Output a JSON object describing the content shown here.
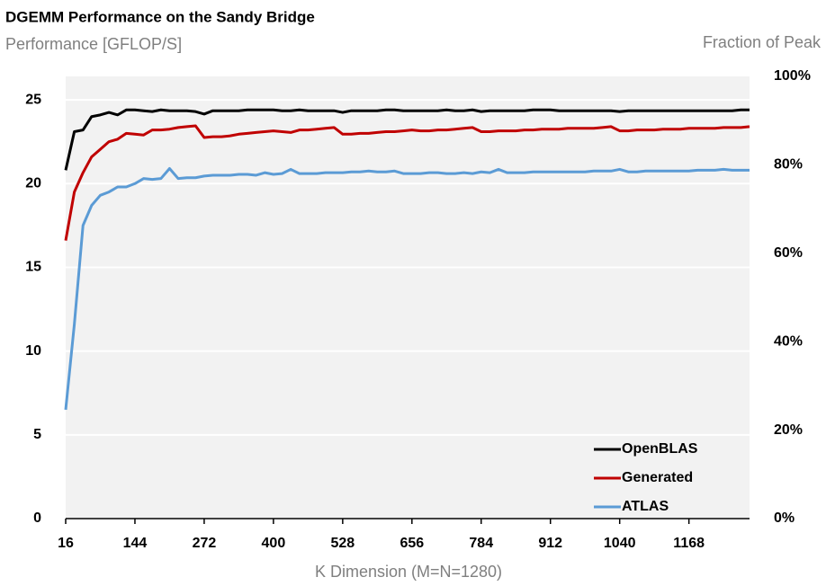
{
  "chart_data": {
    "type": "line",
    "title": "DGEMM Performance on the Sandy Bridge",
    "ylabel": "Performance [GFLOP/S]",
    "y2label": "Fraction of Peak",
    "xlabel": "K Dimension (M=N=1280)",
    "x": [
      16,
      32,
      48,
      64,
      80,
      96,
      112,
      128,
      144,
      160,
      176,
      192,
      208,
      224,
      240,
      256,
      272,
      288,
      304,
      320,
      336,
      352,
      368,
      384,
      400,
      416,
      432,
      448,
      464,
      480,
      496,
      512,
      528,
      544,
      560,
      576,
      592,
      608,
      624,
      640,
      656,
      672,
      688,
      704,
      720,
      736,
      752,
      768,
      784,
      800,
      816,
      832,
      848,
      864,
      880,
      896,
      912,
      928,
      944,
      960,
      976,
      992,
      1008,
      1024,
      1040,
      1056,
      1072,
      1088,
      1104,
      1120,
      1136,
      1152,
      1168,
      1184,
      1200,
      1216,
      1232,
      1248,
      1264,
      1280
    ],
    "series": [
      {
        "name": "OpenBLAS",
        "color": "#000000",
        "values": [
          20.8,
          23.1,
          23.2,
          24.0,
          24.1,
          24.25,
          24.1,
          24.4,
          24.4,
          24.35,
          24.3,
          24.4,
          24.35,
          24.35,
          24.35,
          24.3,
          24.15,
          24.35,
          24.35,
          24.35,
          24.35,
          24.4,
          24.4,
          24.4,
          24.4,
          24.35,
          24.35,
          24.4,
          24.35,
          24.35,
          24.35,
          24.35,
          24.25,
          24.35,
          24.35,
          24.35,
          24.35,
          24.4,
          24.4,
          24.35,
          24.35,
          24.35,
          24.35,
          24.35,
          24.4,
          24.35,
          24.35,
          24.4,
          24.3,
          24.35,
          24.35,
          24.35,
          24.35,
          24.35,
          24.4,
          24.4,
          24.4,
          24.35,
          24.35,
          24.35,
          24.35,
          24.35,
          24.35,
          24.35,
          24.3,
          24.35,
          24.35,
          24.35,
          24.35,
          24.35,
          24.35,
          24.35,
          24.35,
          24.35,
          24.35,
          24.35,
          24.35,
          24.35,
          24.4,
          24.4
        ]
      },
      {
        "name": "Generated",
        "color": "#c00000",
        "values": [
          16.6,
          19.5,
          20.65,
          21.6,
          22.05,
          22.5,
          22.65,
          23.0,
          22.95,
          22.9,
          23.2,
          23.2,
          23.25,
          23.35,
          23.4,
          23.45,
          22.75,
          22.8,
          22.8,
          22.85,
          22.95,
          23.0,
          23.05,
          23.1,
          23.15,
          23.1,
          23.05,
          23.2,
          23.2,
          23.25,
          23.3,
          23.35,
          22.95,
          22.95,
          23.0,
          23.0,
          23.05,
          23.1,
          23.1,
          23.15,
          23.2,
          23.15,
          23.15,
          23.2,
          23.2,
          23.25,
          23.3,
          23.35,
          23.1,
          23.1,
          23.15,
          23.15,
          23.15,
          23.2,
          23.2,
          23.25,
          23.25,
          23.25,
          23.3,
          23.3,
          23.3,
          23.3,
          23.35,
          23.4,
          23.15,
          23.15,
          23.2,
          23.2,
          23.2,
          23.25,
          23.25,
          23.25,
          23.3,
          23.3,
          23.3,
          23.3,
          23.35,
          23.35,
          23.35,
          23.4
        ]
      },
      {
        "name": "ATLAS",
        "color": "#5b9bd5",
        "values": [
          6.5,
          11.6,
          17.5,
          18.7,
          19.3,
          19.5,
          19.8,
          19.8,
          20.0,
          20.3,
          20.25,
          20.3,
          20.9,
          20.3,
          20.35,
          20.35,
          20.45,
          20.5,
          20.5,
          20.5,
          20.55,
          20.55,
          20.5,
          20.65,
          20.55,
          20.6,
          20.85,
          20.6,
          20.6,
          20.6,
          20.65,
          20.65,
          20.65,
          20.7,
          20.7,
          20.75,
          20.7,
          20.7,
          20.75,
          20.6,
          20.6,
          20.6,
          20.65,
          20.65,
          20.6,
          20.6,
          20.65,
          20.6,
          20.7,
          20.65,
          20.85,
          20.65,
          20.65,
          20.65,
          20.7,
          20.7,
          20.7,
          20.7,
          20.7,
          20.7,
          20.7,
          20.75,
          20.75,
          20.75,
          20.85,
          20.7,
          20.7,
          20.75,
          20.75,
          20.75,
          20.75,
          20.75,
          20.75,
          20.8,
          20.8,
          20.8,
          20.85,
          20.8,
          20.8,
          20.8
        ]
      }
    ],
    "xlim": [
      16,
      1280
    ],
    "xticks": [
      16,
      144,
      272,
      400,
      528,
      656,
      784,
      912,
      1040,
      1168
    ],
    "ylim": [
      0,
      26.4
    ],
    "yticks": [
      0,
      5,
      10,
      15,
      20,
      25
    ],
    "y2lim": [
      0,
      100
    ],
    "y2ticks": [
      {
        "value": 0,
        "label": "0%"
      },
      {
        "value": 20,
        "label": "20%"
      },
      {
        "value": 40,
        "label": "40%"
      },
      {
        "value": 60,
        "label": "60%"
      },
      {
        "value": 80,
        "label": "80%"
      },
      {
        "value": 100,
        "label": "100%"
      }
    ],
    "grid": true,
    "legend": "lower right"
  }
}
